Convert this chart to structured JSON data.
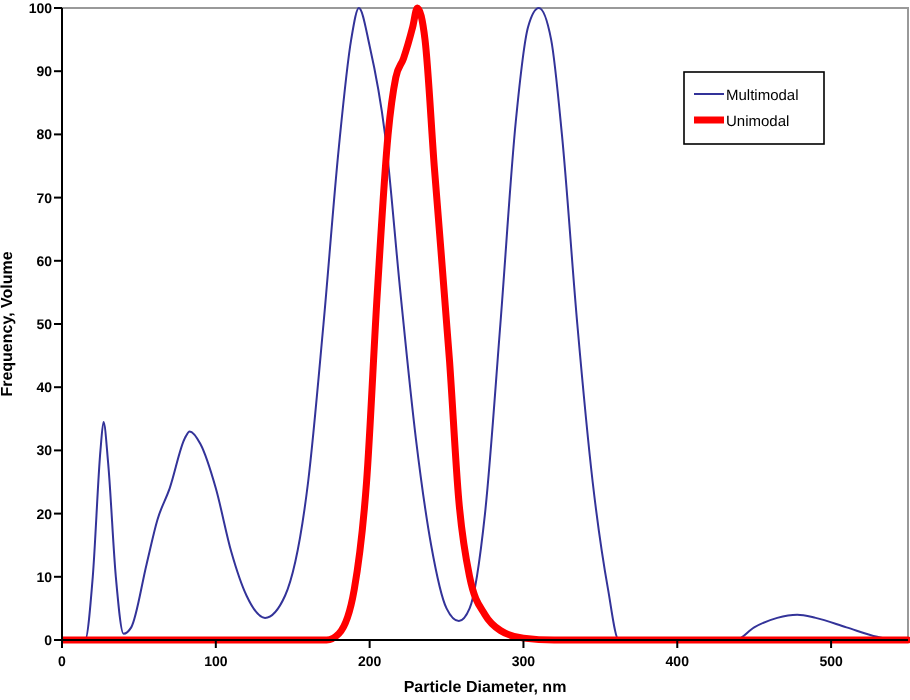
{
  "chart_data": {
    "type": "line",
    "xlabel": "Particle Diameter, nm",
    "ylabel": "Frequency, Volume",
    "xlim": [
      0,
      550
    ],
    "ylim": [
      0,
      100
    ],
    "xticks": [
      0,
      100,
      200,
      300,
      400,
      500
    ],
    "yticks": [
      0,
      10,
      20,
      30,
      40,
      50,
      60,
      70,
      80,
      90,
      100
    ],
    "grid": false,
    "legend": "top right",
    "marker": "none",
    "line_style": "solid",
    "series": [
      {
        "name": "Multimodal",
        "color": "#333399",
        "x": [
          0,
          15,
          20,
          25,
          27,
          30,
          35,
          40,
          45,
          55,
          62,
          70,
          80,
          83,
          90,
          100,
          110,
          120,
          132,
          145,
          160,
          170,
          180,
          188,
          193,
          200,
          210,
          220,
          230,
          240,
          250,
          258,
          265,
          275,
          285,
          295,
          303,
          310,
          318,
          325,
          335,
          345,
          355,
          362,
          438,
          450,
          465,
          478,
          490,
          510,
          530,
          540
        ],
        "values": [
          0,
          0,
          10,
          30,
          34.5,
          28,
          10,
          1,
          2,
          12,
          19,
          24,
          32,
          33,
          31,
          24,
          14,
          7,
          3.5,
          7,
          25,
          50,
          78,
          95,
          100,
          94,
          80,
          55,
          32,
          15,
          5,
          3,
          5,
          20,
          50,
          82,
          97,
          100,
          95,
          80,
          50,
          25,
          8,
          0,
          0,
          2,
          3.5,
          4,
          3.5,
          2,
          0.5,
          0
        ]
      },
      {
        "name": "Unimodal",
        "color": "#ff0000",
        "x": [
          0,
          172,
          180,
          190,
          198,
          205,
          212,
          217,
          222,
          228,
          231,
          236,
          242,
          252,
          258,
          265,
          275,
          285,
          300,
          320,
          550
        ],
        "values": [
          0,
          0,
          1,
          8,
          25,
          55,
          80,
          89,
          92,
          97,
          100,
          95,
          75,
          44,
          22,
          10,
          4,
          1.5,
          0.3,
          0,
          0
        ]
      }
    ]
  }
}
